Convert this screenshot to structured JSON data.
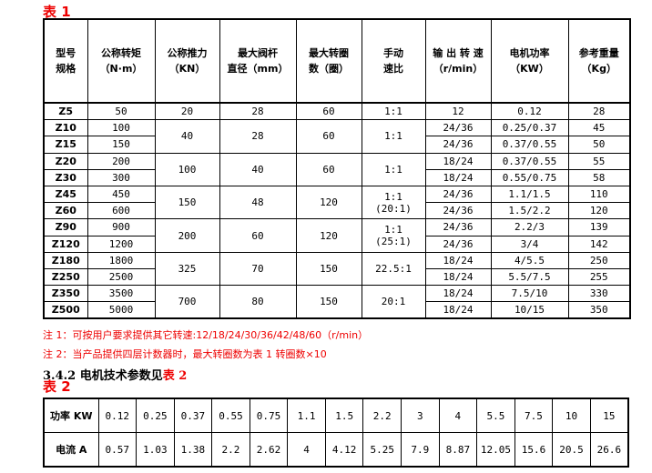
{
  "table1": {
    "caption": "表 1",
    "headers": [
      [
        "型号",
        "规格"
      ],
      [
        "公称转矩",
        "（N·m）"
      ],
      [
        "公称推力",
        "（KN）"
      ],
      [
        "最大阀杆",
        "直径（mm）"
      ],
      [
        "最大转圈",
        "数（圈）"
      ],
      [
        "手动",
        "速比"
      ],
      [
        "输 出 转 速",
        "（r/min）"
      ],
      [
        "电机功率",
        "（KW）"
      ],
      [
        "参考重量",
        "（Kg）"
      ]
    ],
    "models": [
      "Z5",
      "Z10",
      "Z15",
      "Z20",
      "Z30",
      "Z45",
      "Z60",
      "Z90",
      "Z120",
      "Z180",
      "Z250",
      "Z350",
      "Z500"
    ],
    "torque": [
      "50",
      "100",
      "150",
      "200",
      "300",
      "450",
      "600",
      "900",
      "1200",
      "1800",
      "2500",
      "3500",
      "5000"
    ],
    "thrust": [
      "20",
      "40",
      "100",
      "150",
      "200",
      "325",
      "700"
    ],
    "stem": [
      "28",
      "28",
      "40",
      "48",
      "60",
      "70",
      "80"
    ],
    "turns": [
      "60",
      "60",
      "60",
      "120",
      "120",
      "150",
      "150"
    ],
    "ratio": [
      "1:1",
      "1:1",
      "1:1",
      "1:1\n(20:1)",
      "1:1\n(25:1)",
      "22.5:1",
      "20:1"
    ],
    "speed": [
      "12",
      "24/36",
      "24/36",
      "18/24",
      "18/24",
      "24/36",
      "24/36",
      "24/36",
      "24/36",
      "18/24",
      "18/24",
      "18/24",
      "18/24"
    ],
    "power": [
      "0.12",
      "0.25/0.37",
      "0.37/0.55",
      "0.37/0.55",
      "0.55/0.75",
      "1.1/1.5",
      "1.5/2.2",
      "2.2/3",
      "3/4",
      "4/5.5",
      "5.5/7.5",
      "7.5/10",
      "10/15"
    ],
    "weight": [
      "28",
      "45",
      "50",
      "55",
      "58",
      "110",
      "120",
      "139",
      "142",
      "250",
      "255",
      "330",
      "350"
    ]
  },
  "notes": [
    "注 1：可按用户要求提供其它转速:12/18/24/30/36/42/48/60（r/min）",
    "注 2：当产品提供四层计数器时，最大转圈数为表 1 转圈数×10"
  ],
  "section": {
    "text": "3.4.2 电机技术参数见",
    "ref": "表 2"
  },
  "table2": {
    "caption": "表 2",
    "row1_label": "功率 KW",
    "row2_label": "电流 A",
    "power": [
      "0.12",
      "0.25",
      "0.37",
      "0.55",
      "0.75",
      "1.1",
      "1.5",
      "2.2",
      "3",
      "4",
      "5.5",
      "7.5",
      "10",
      "15"
    ],
    "current": [
      "0.57",
      "1.03",
      "1.38",
      "2.2",
      "2.62",
      "4",
      "4.12",
      "5.25",
      "7.9",
      "8.87",
      "12.05",
      "15.6",
      "20.5",
      "26.6"
    ]
  }
}
